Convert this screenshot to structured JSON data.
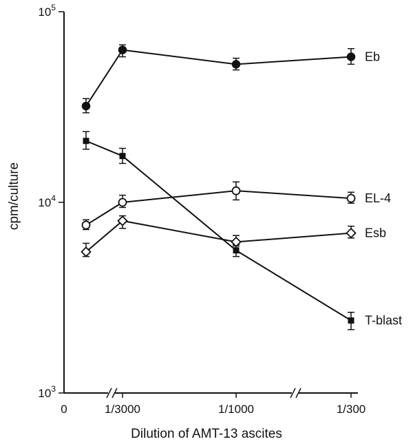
{
  "chart_data": {
    "type": "line",
    "title": "",
    "xlabel": "Dilution of AMT-13 ascites",
    "ylabel": "cpm/culture",
    "yscale": "log",
    "ylim": [
      1000,
      100000
    ],
    "y_ticks": [
      {
        "value": 1000,
        "base": "10",
        "exp": "3"
      },
      {
        "value": 10000,
        "base": "10",
        "exp": "4"
      },
      {
        "value": 100000,
        "base": "10",
        "exp": "5"
      }
    ],
    "x_ticks": [
      "0",
      "1/3000",
      "1/1000",
      "1/300"
    ],
    "x_axis_breaks": [
      "between 0 and 1/3000",
      "between 1/1000 and 1/300"
    ],
    "x": [
      "0",
      "1/3000",
      "1/1000",
      "1/300"
    ],
    "grid": false,
    "legend": "labels at right end of each series",
    "series": [
      {
        "name": "Eb",
        "marker": "filled-circle",
        "values": [
          32000,
          63000,
          53000,
          58000
        ],
        "error_low": [
          29500,
          58000,
          49500,
          53000
        ],
        "error_high": [
          35000,
          67000,
          57000,
          64000
        ]
      },
      {
        "name": "T-blast",
        "marker": "filled-square",
        "values": [
          21000,
          17500,
          5600,
          2400
        ],
        "error_low": [
          19000,
          16000,
          5200,
          2150
        ],
        "error_high": [
          23500,
          19200,
          6000,
          2650
        ]
      },
      {
        "name": "EL-4",
        "marker": "open-circle",
        "values": [
          7600,
          10000,
          11500,
          10500
        ],
        "error_low": [
          7200,
          9400,
          10300,
          9900
        ],
        "error_high": [
          8100,
          10900,
          12800,
          11300
        ]
      },
      {
        "name": "Esb",
        "marker": "open-diamond",
        "values": [
          5500,
          8000,
          6200,
          6900
        ],
        "error_low": [
          5200,
          7300,
          5900,
          6500
        ],
        "error_high": [
          6100,
          8500,
          6700,
          7500
        ]
      }
    ]
  }
}
